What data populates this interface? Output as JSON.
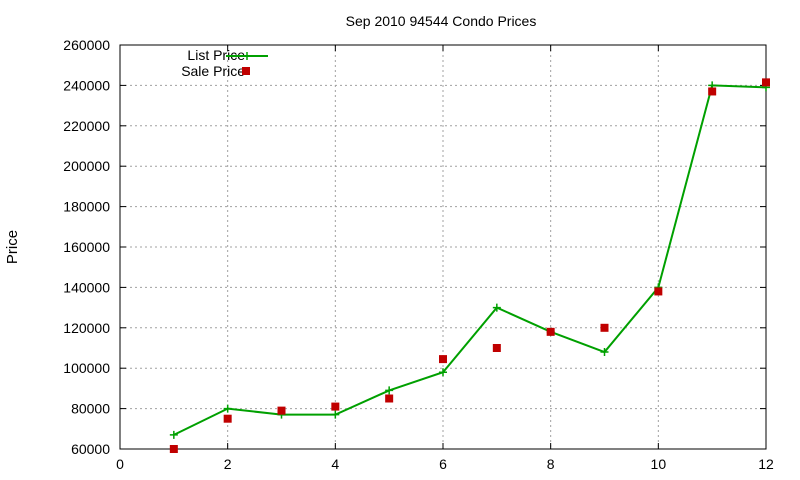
{
  "chart_data": {
    "type": "line",
    "title": "Sep 2010 94544 Condo Prices",
    "ylabel": "Price",
    "xlabel": "",
    "xlim": [
      0,
      12
    ],
    "ylim": [
      60000,
      260000
    ],
    "xticks": [
      "0",
      "2",
      "4",
      "6",
      "8",
      "10",
      "12"
    ],
    "yticks": [
      "60000",
      "80000",
      "100000",
      "120000",
      "140000",
      "160000",
      "180000",
      "200000",
      "220000",
      "240000",
      "260000"
    ],
    "grid": true,
    "legend_position": "top-left",
    "series": [
      {
        "name": "List Price",
        "style": "line-with-plus-markers",
        "color": "#00a000",
        "x": [
          1,
          2,
          3,
          4,
          5,
          6,
          7,
          8,
          9,
          10,
          11,
          12
        ],
        "y": [
          67000,
          80000,
          77000,
          77000,
          89000,
          98000,
          130000,
          118000,
          108000,
          140000,
          240000,
          239000
        ]
      },
      {
        "name": "Sale Price",
        "style": "square-points",
        "color": "#c00000",
        "x": [
          1,
          2,
          3,
          4,
          5,
          6,
          7,
          8,
          9,
          10,
          11,
          12
        ],
        "y": [
          60000,
          75000,
          79000,
          81000,
          85000,
          104500,
          110000,
          118000,
          120000,
          138000,
          237000,
          241500
        ]
      }
    ]
  }
}
